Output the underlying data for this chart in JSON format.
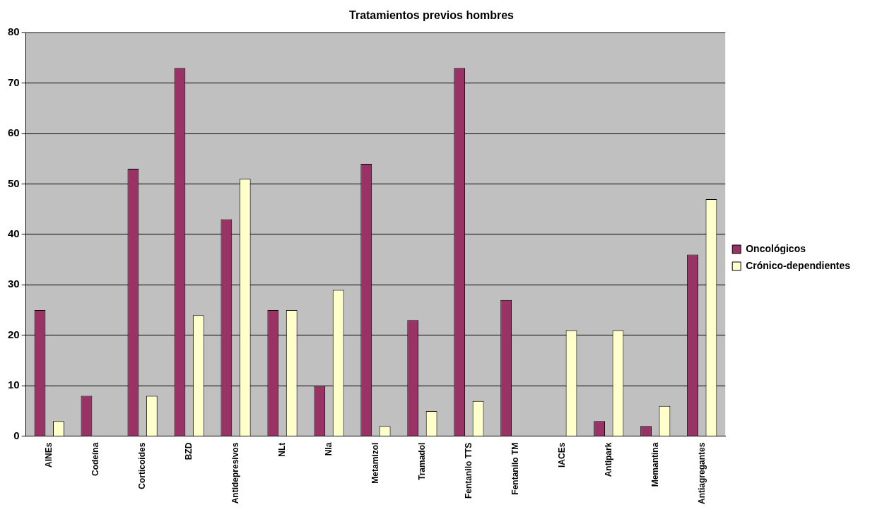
{
  "chart_data": {
    "type": "bar",
    "title": "Tratamientos previos hombres",
    "categories": [
      "AINEs",
      "Codeína",
      "Corticoides",
      "BZD",
      "Antidepresivos",
      "NLt",
      "NIa",
      "Metamizol",
      "Tramadol",
      "Fentanilo TTS",
      "Fentanilo TM",
      "IACEs",
      "Antipark",
      "Memantina",
      "Antiagregantes"
    ],
    "series": [
      {
        "name": "Oncológicos",
        "color": "#993366",
        "values": [
          25,
          8,
          53,
          73,
          43,
          25,
          10,
          54,
          23,
          73,
          27,
          0,
          3,
          2,
          36
        ]
      },
      {
        "name": "Crónico-dependientes",
        "color": "#ffffcc",
        "values": [
          3,
          0,
          8,
          24,
          51,
          25,
          29,
          2,
          5,
          7,
          0,
          21,
          21,
          6,
          47
        ]
      }
    ],
    "ylim": [
      0,
      80
    ],
    "yticks": [
      0,
      10,
      20,
      30,
      40,
      50,
      60,
      70,
      80
    ],
    "grid": "y",
    "legend": "right"
  }
}
